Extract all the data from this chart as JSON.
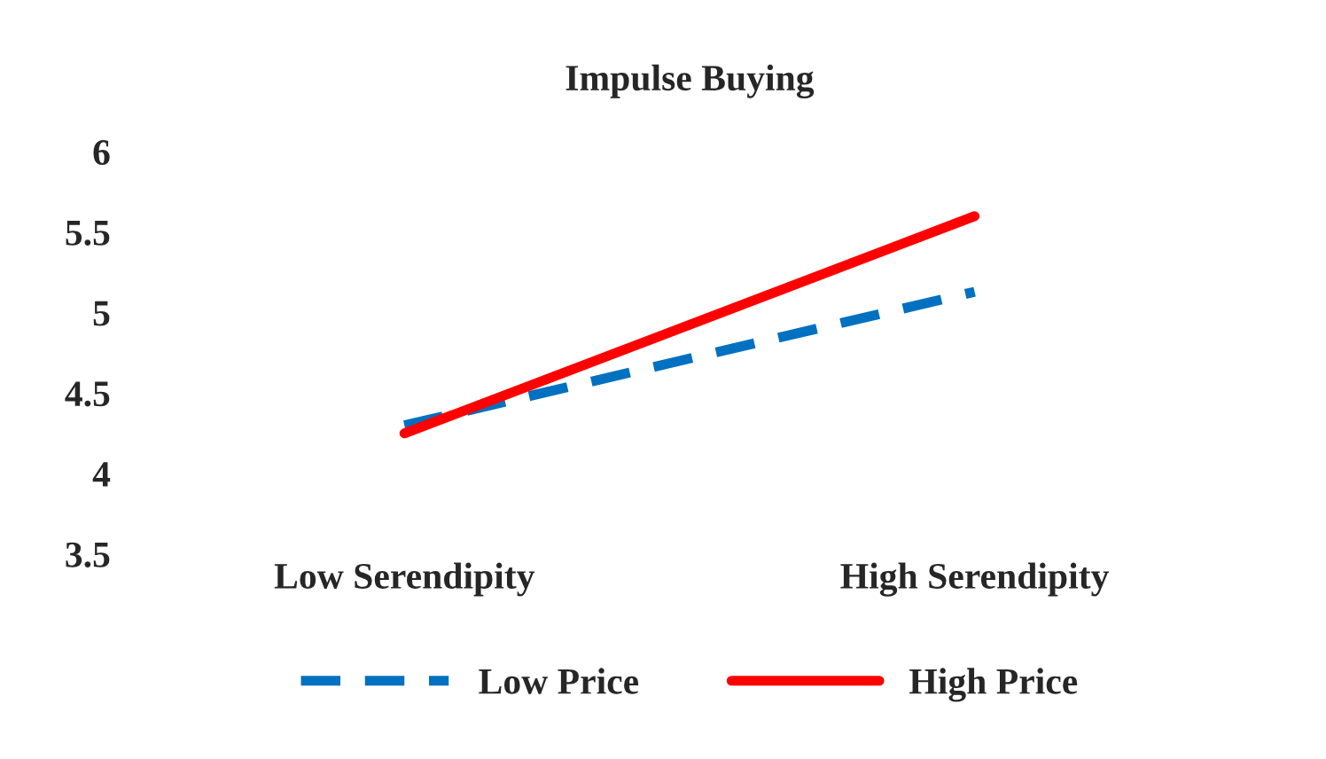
{
  "chart_data": {
    "type": "line",
    "title": "Impulse Buying",
    "categories": [
      "Low Serendipity",
      "High Serendipity"
    ],
    "series": [
      {
        "name": "Low Price",
        "color": "#0070c0",
        "values": [
          4.3,
          5.13
        ],
        "line_style": "dashed"
      },
      {
        "name": "High Price",
        "color": "#ff0000",
        "values": [
          4.25,
          5.6
        ],
        "line_style": "solid"
      }
    ],
    "ylim": [
      3.5,
      6
    ],
    "yticks": [
      3.5,
      4,
      4.5,
      5,
      5.5,
      6
    ],
    "grid": false,
    "legend": "bottom",
    "marker": "none"
  }
}
